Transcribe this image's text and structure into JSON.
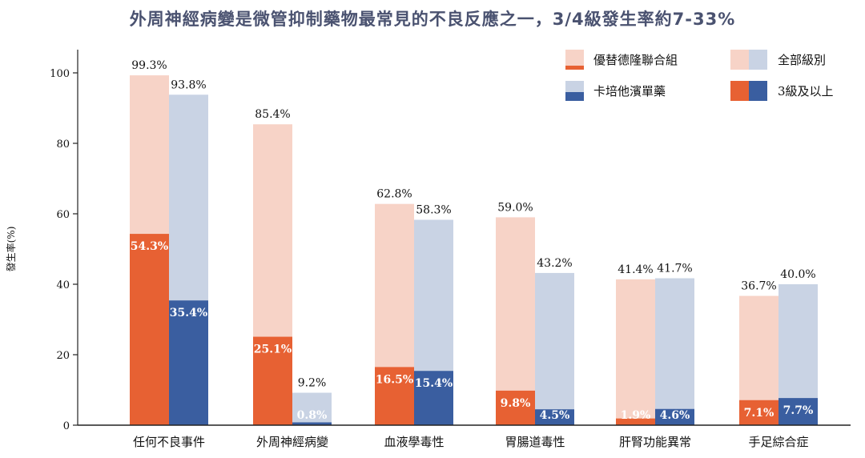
{
  "chart_data": {
    "type": "bar",
    "title": "外周神經病變是微管抑制藥物最常見的不良反應之一，3/4級發生率約7-33%",
    "ylabel": "發生率(%)",
    "xlabel": "",
    "ylim": [
      0,
      105
    ],
    "yticks": [
      0,
      20,
      40,
      60,
      80,
      100
    ],
    "categories": [
      "任何不良事件",
      "外周神經病變",
      "血液學毒性",
      "胃腸道毒性",
      "肝腎功能異常",
      "手足綜合症"
    ],
    "series": [
      {
        "name": "優替德隆聯合組",
        "all_grade": [
          99.3,
          85.4,
          62.8,
          59.0,
          41.4,
          36.7
        ],
        "grade3plus": [
          54.3,
          25.1,
          16.5,
          9.8,
          1.9,
          7.1
        ],
        "all_labels": [
          "99.3%",
          "85.4%",
          "62.8%",
          "59.0%",
          "41.4%",
          "36.7%"
        ],
        "g3_labels": [
          "54.3%",
          "25.1%",
          "16.5%",
          "9.8%",
          "1.9%",
          "7.1%"
        ],
        "color_all": "#f7d3c7",
        "color_g3": "#e76133"
      },
      {
        "name": "卡培他濱單藥",
        "all_grade": [
          93.8,
          9.2,
          58.3,
          43.2,
          41.7,
          40.0
        ],
        "grade3plus": [
          35.4,
          0.8,
          15.4,
          4.5,
          4.6,
          7.7
        ],
        "all_labels": [
          "93.8%",
          "9.2%",
          "58.3%",
          "43.2%",
          "41.7%",
          "40.0%"
        ],
        "g3_labels": [
          "35.4%",
          "0.8%",
          "15.4%",
          "4.5%",
          "4.6%",
          "7.7%"
        ],
        "color_all": "#c9d3e4",
        "color_g3": "#3a5ea0"
      }
    ],
    "legend": {
      "position": "top-right",
      "items": [
        "優替德隆聯合組",
        "卡培他濱單藥",
        "全部級別",
        "3級及以上"
      ]
    }
  }
}
